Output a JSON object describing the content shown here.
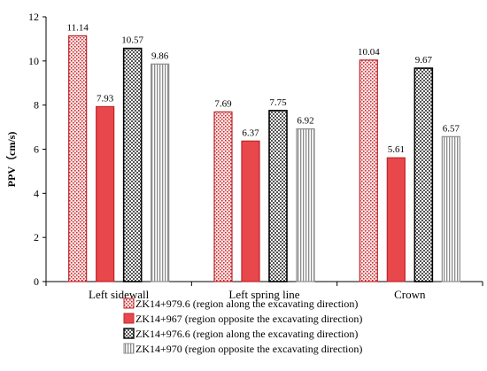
{
  "chart_data": {
    "type": "bar",
    "title": "",
    "xlabel": "",
    "ylabel": "PPV（cm/s)",
    "ylim": [
      0,
      12
    ],
    "yticks": [
      0,
      2,
      4,
      6,
      8,
      10,
      12
    ],
    "grid": false,
    "legend_position": "bottom",
    "categories": [
      "Left sidewall",
      "Left spring line",
      "Crown"
    ],
    "series": [
      {
        "name": "ZK14+979.6 (region along the excavating direction)",
        "values": [
          11.14,
          7.69,
          10.04
        ],
        "labels": [
          "11.14",
          "7.69",
          "10.04"
        ],
        "pattern": "dots",
        "fill_color": "#f4c7c7",
        "stroke_color": "#c0262a"
      },
      {
        "name": "ZK14+967 (region opposite the excavating direction)",
        "values": [
          7.93,
          6.37,
          5.61
        ],
        "labels": [
          "7.93",
          "6.37",
          "5.61"
        ],
        "pattern": "solid",
        "fill_color": "#e8474b",
        "stroke_color": "#c0262a"
      },
      {
        "name": "ZK14+976.6 (region along the excavating direction)",
        "values": [
          10.57,
          7.75,
          9.67
        ],
        "labels": [
          "10.57",
          "7.75",
          "9.67"
        ],
        "pattern": "checker",
        "fill_color": "#9a9a9a",
        "stroke_color": "#000000"
      },
      {
        "name": "ZK14+970 (region opposite the excavating direction)",
        "values": [
          9.86,
          6.92,
          6.57
        ],
        "labels": [
          "9.86",
          "6.92",
          "6.57"
        ],
        "pattern": "vstripes",
        "fill_color": "#8c8c8c",
        "stroke_color": "#8c8c8c"
      }
    ]
  }
}
